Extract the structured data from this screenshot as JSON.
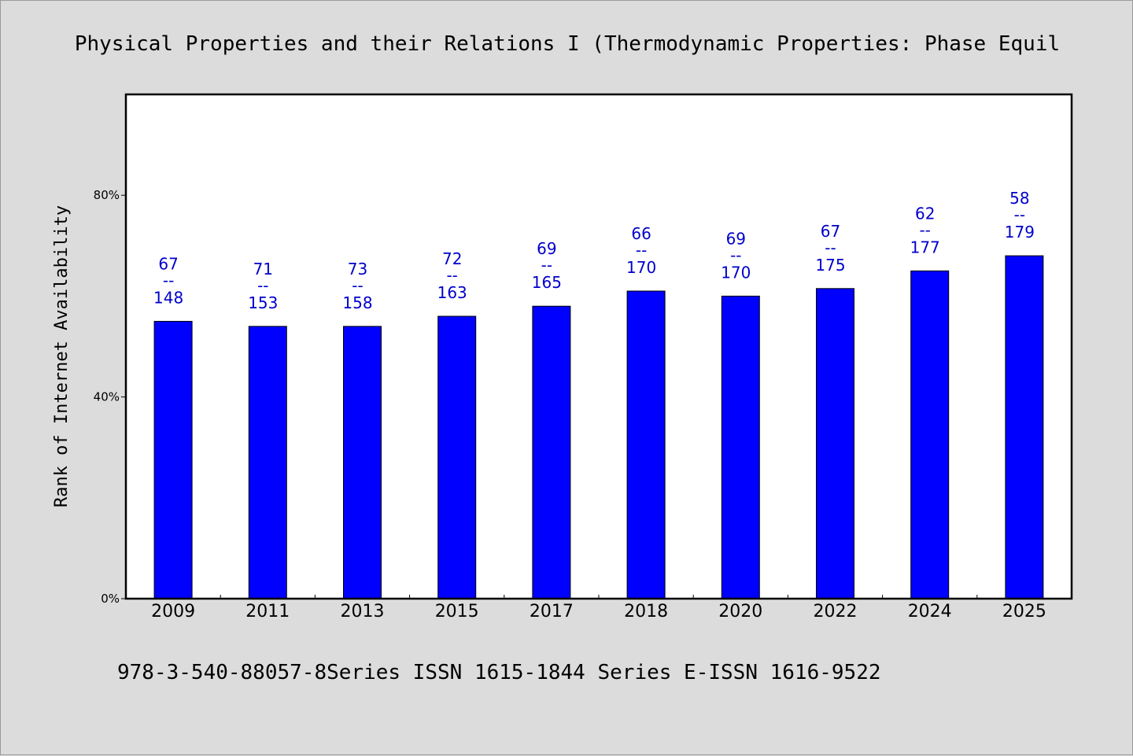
{
  "title": "Physical Properties and their Relations I (Thermodynamic Properties: Phase Equil",
  "footer": "978-3-540-88057-8Series ISSN 1615-1844 Series E-ISSN 1616-9522",
  "colors": {
    "bar": "#0000ff",
    "label": "#0000cc",
    "background": "#dcdcdc",
    "plot": "#ffffff"
  },
  "chart_data": {
    "type": "bar",
    "ylabel": "Rank of Internet Availability",
    "xlabel": "",
    "ylim": [
      0,
      100
    ],
    "yticks": [
      0,
      40,
      80
    ],
    "ytick_labels": [
      "0%",
      "40%",
      "80%"
    ],
    "grid": false,
    "categories": [
      "2009",
      "2011",
      "2013",
      "2015",
      "2017",
      "2018",
      "2020",
      "2022",
      "2024",
      "2025"
    ],
    "values": [
      55,
      54,
      54,
      56,
      58,
      61,
      60,
      61.5,
      65,
      68
    ],
    "labels_top": [
      "67",
      "71",
      "73",
      "72",
      "69",
      "66",
      "69",
      "67",
      "62",
      "58"
    ],
    "labels_sep": "--",
    "labels_bottom": [
      "148",
      "153",
      "158",
      "163",
      "165",
      "170",
      "170",
      "175",
      "177",
      "179"
    ]
  }
}
